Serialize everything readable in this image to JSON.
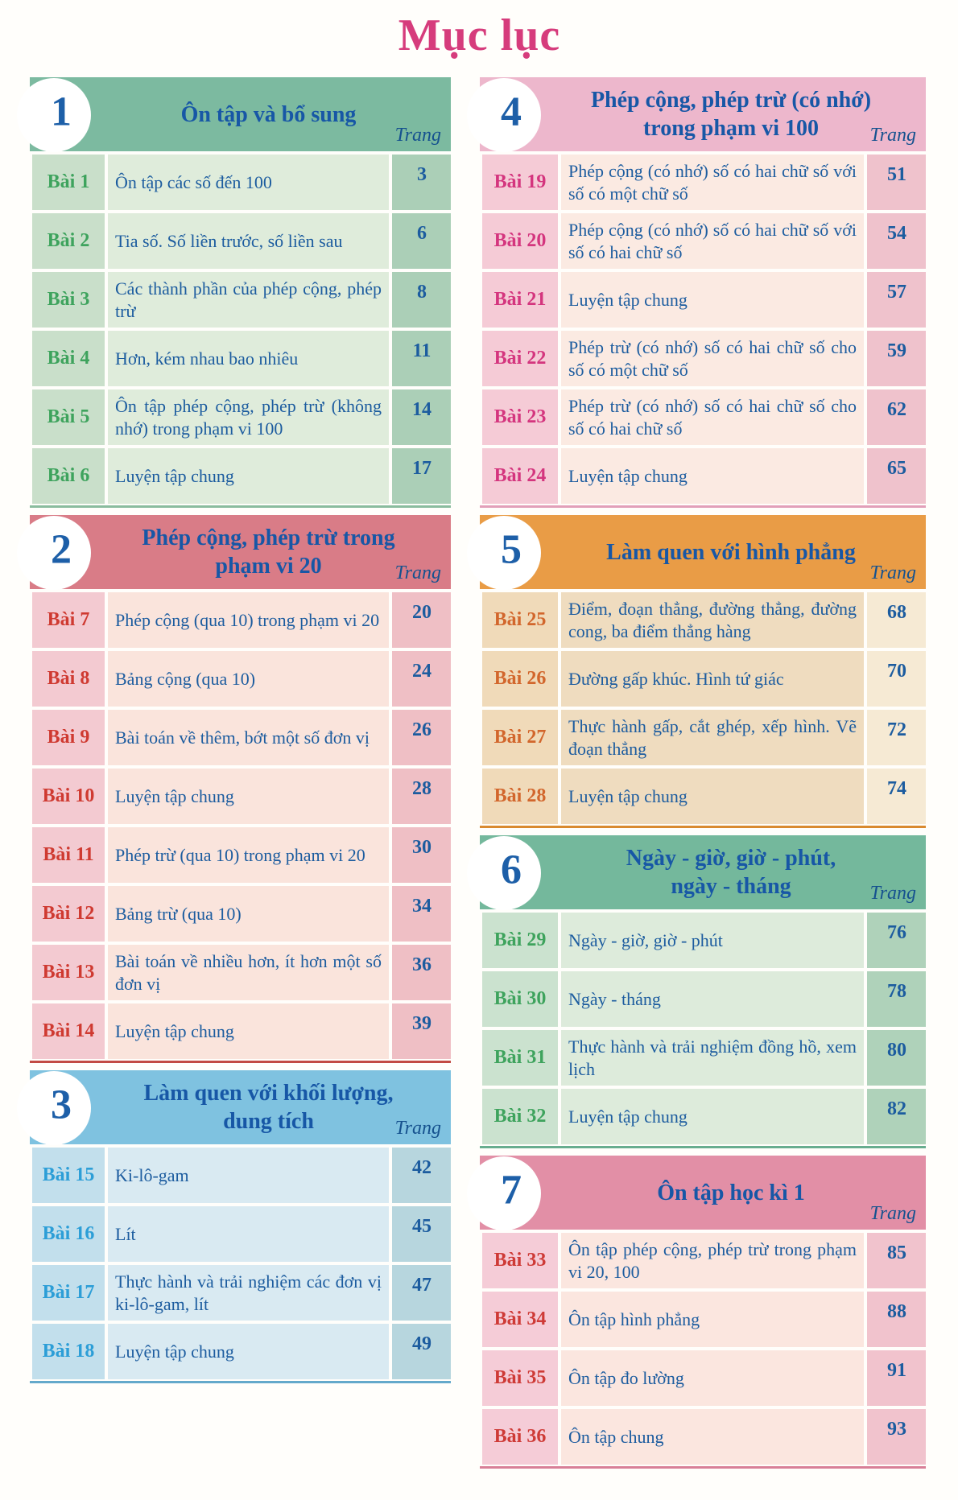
{
  "page_title": "Mục lục",
  "text_colors": {
    "title": "#D63C7C",
    "content": "#1C5C9F",
    "header_title": "#1757A6",
    "trang": "#16528F",
    "section_number": "#1D5FA8"
  },
  "sections": [
    {
      "id": "1",
      "column": "left",
      "number": "1",
      "title_lines": [
        "Ôn tập và bổ sung"
      ],
      "trang_label": "Trang",
      "colors": {
        "header": "#7CBAA0",
        "label_bg": "#C9DFCA",
        "content_bg": "#DFECDB",
        "page_bg": "#ABCFB7",
        "lesson_label": "#3EA35D",
        "rule": "#8ABC9E"
      },
      "rows": [
        {
          "label": "Bài 1",
          "title": "Ôn tập các số đến 100",
          "page": "3"
        },
        {
          "label": "Bài 2",
          "title": "Tia số. Số liền trước, số liền sau",
          "page": "6"
        },
        {
          "label": "Bài 3",
          "title": "Các thành phần của phép cộng, phép trừ",
          "page": "8"
        },
        {
          "label": "Bài 4",
          "title": "Hơn, kém nhau bao nhiêu",
          "page": "11"
        },
        {
          "label": "Bài 5",
          "title": "Ôn tập phép cộng, phép trừ (không nhớ) trong phạm vi 100",
          "page": "14"
        },
        {
          "label": "Bài 6",
          "title": "Luyện tập chung",
          "page": "17"
        }
      ]
    },
    {
      "id": "2",
      "column": "left",
      "number": "2",
      "title_lines": [
        "Phép cộng, phép trừ trong",
        "phạm vi 20"
      ],
      "trang_label": "Trang",
      "colors": {
        "header": "#D97C87",
        "label_bg": "#F3CAD1",
        "content_bg": "#FAE4DC",
        "page_bg": "#EFBFC5",
        "lesson_label": "#CF3A31",
        "rule": "#C24A44"
      },
      "rows": [
        {
          "label": "Bài 7",
          "title": "Phép cộng (qua 10) trong phạm vi 20",
          "page": "20"
        },
        {
          "label": "Bài 8",
          "title": "Bảng cộng (qua 10)",
          "page": "24"
        },
        {
          "label": "Bài 9",
          "title": "Bài toán về thêm, bớt một số đơn vị",
          "page": "26"
        },
        {
          "label": "Bài 10",
          "title": "Luyện tập chung",
          "page": "28"
        },
        {
          "label": "Bài 11",
          "title": "Phép trừ (qua 10) trong phạm vi 20",
          "page": "30"
        },
        {
          "label": "Bài 12",
          "title": "Bảng trừ (qua 10)",
          "page": "34"
        },
        {
          "label": "Bài 13",
          "title": "Bài toán về nhiều hơn, ít hơn một số đơn vị",
          "page": "36"
        },
        {
          "label": "Bài 14",
          "title": "Luyện tập chung",
          "page": "39"
        }
      ]
    },
    {
      "id": "3",
      "column": "left",
      "number": "3",
      "title_lines": [
        "Làm quen với khối lượng,",
        "dung tích"
      ],
      "trang_label": "Trang",
      "colors": {
        "header": "#7FC2E0",
        "label_bg": "#C2DFEC",
        "content_bg": "#D9EAF2",
        "page_bg": "#B7D6DE",
        "lesson_label": "#2C9ED7",
        "rule": "#64A9CB"
      },
      "rows": [
        {
          "label": "Bài 15",
          "title": "Ki-lô-gam",
          "page": "42"
        },
        {
          "label": "Bài 16",
          "title": "Lít",
          "page": "45"
        },
        {
          "label": "Bài 17",
          "title": "Thực hành và trải nghiệm các đơn vị ki-lô-gam, lít",
          "page": "47"
        },
        {
          "label": "Bài 18",
          "title": "Luyện tập chung",
          "page": "49"
        }
      ]
    },
    {
      "id": "4",
      "column": "right",
      "number": "4",
      "title_lines": [
        "Phép cộng, phép trừ (có nhớ)",
        "trong phạm vi 100"
      ],
      "trang_label": "Trang",
      "colors": {
        "header": "#EDB7CC",
        "label_bg": "#F5CBD6",
        "content_bg": "#FBEAE2",
        "page_bg": "#EFC2CC",
        "lesson_label": "#D4357E",
        "rule": "#E29FB9"
      },
      "rows": [
        {
          "label": "Bài 19",
          "title": "Phép cộng (có nhớ) số có hai chữ số với số có một chữ số",
          "page": "51"
        },
        {
          "label": "Bài 20",
          "title": "Phép cộng (có nhớ) số có hai chữ số với số có hai chữ số",
          "page": "54"
        },
        {
          "label": "Bài 21",
          "title": "Luyện tập chung",
          "page": "57"
        },
        {
          "label": "Bài 22",
          "title": "Phép trừ (có nhớ) số có hai chữ số cho số có một chữ số",
          "page": "59"
        },
        {
          "label": "Bài 23",
          "title": "Phép trừ (có nhớ) số có hai chữ số cho số có hai chữ số",
          "page": "62"
        },
        {
          "label": "Bài 24",
          "title": "Luyện tập chung",
          "page": "65"
        }
      ]
    },
    {
      "id": "5",
      "column": "right",
      "number": "5",
      "title_lines": [
        "Làm quen với hình phẳng"
      ],
      "trang_label": "Trang",
      "colors": {
        "header": "#E99C46",
        "label_bg": "#F0DAB9",
        "content_bg": "#EFDCBF",
        "page_bg": "#F6EAD4",
        "lesson_label": "#D2662C",
        "rule": "#D98A2F"
      },
      "rows": [
        {
          "label": "Bài 25",
          "title": "Điểm, đoạn thẳng, đường thẳng, đường cong, ba điểm thẳng hàng",
          "page": "68"
        },
        {
          "label": "Bài 26",
          "title": "Đường gấp khúc. Hình tứ giác",
          "page": "70"
        },
        {
          "label": "Bài 27",
          "title": "Thực hành gấp, cắt ghép, xếp hình. Vẽ đoạn thẳng",
          "page": "72"
        },
        {
          "label": "Bài 28",
          "title": "Luyện tập chung",
          "page": "74"
        }
      ]
    },
    {
      "id": "6",
      "column": "right",
      "number": "6",
      "title_lines": [
        "Ngày - giờ, giờ - phút,",
        "ngày - tháng"
      ],
      "trang_label": "Trang",
      "colors": {
        "header": "#74B89C",
        "label_bg": "#CBE2CF",
        "content_bg": "#DDEBDB",
        "page_bg": "#AFD2BA",
        "lesson_label": "#3EA35D",
        "rule": "#68AD8F"
      },
      "rows": [
        {
          "label": "Bài 29",
          "title": "Ngày - giờ, giờ - phút",
          "page": "76"
        },
        {
          "label": "Bài 30",
          "title": "Ngày - tháng",
          "page": "78"
        },
        {
          "label": "Bài 31",
          "title": "Thực hành và trải nghiệm đồng hồ, xem lịch",
          "page": "80"
        },
        {
          "label": "Bài 32",
          "title": "Luyện tập chung",
          "page": "82"
        }
      ]
    },
    {
      "id": "7",
      "column": "right",
      "number": "7",
      "title_lines": [
        "Ôn tập học kì 1"
      ],
      "trang_label": "Trang",
      "colors": {
        "header": "#E28FA6",
        "label_bg": "#F5CCD7",
        "content_bg": "#FBE6DF",
        "page_bg": "#F1C3CD",
        "lesson_label": "#CE3A36",
        "rule": "#D87F97"
      },
      "rows": [
        {
          "label": "Bài 33",
          "title": "Ôn tập phép cộng, phép trừ trong phạm vi 20, 100",
          "page": "85"
        },
        {
          "label": "Bài 34",
          "title": "Ôn tập hình phẳng",
          "page": "88"
        },
        {
          "label": "Bài 35",
          "title": "Ôn tập đo lường",
          "page": "91"
        },
        {
          "label": "Bài 36",
          "title": "Ôn tập chung",
          "page": "93"
        }
      ]
    }
  ]
}
